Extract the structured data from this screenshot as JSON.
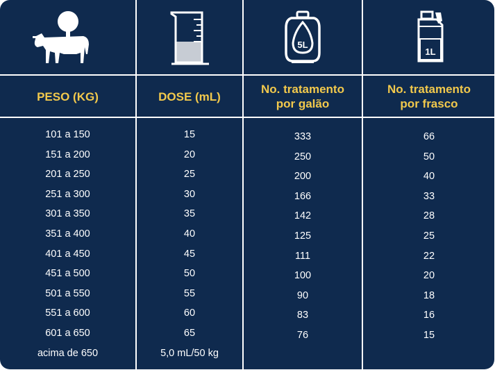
{
  "icons": {
    "col1": "cow-icon",
    "col2": "beaker-icon",
    "col3": "gallon-5l-icon",
    "col4": "bottle-1l-icon"
  },
  "icon_labels": {
    "gallon": "5L",
    "bottle": "1L"
  },
  "headers": {
    "peso": "PESO (KG)",
    "dose": "DOSE (mL)",
    "galao_line1": "No. tratamento",
    "galao_line2": "por galão",
    "frasco_line1": "No. tratamento",
    "frasco_line2": "por frasco"
  },
  "rows": {
    "peso": [
      "101 a 150",
      "151 a 200",
      "201 a 250",
      "251 a 300",
      "301 a 350",
      "351 a 400",
      "401 a 450",
      "451 a 500",
      "501 a 550",
      "551 a 600",
      "601 a 650",
      "acima de 650"
    ],
    "dose": [
      "15",
      "20",
      "25",
      "30",
      "35",
      "40",
      "45",
      "50",
      "55",
      "60",
      "65",
      "5,0 mL/50 kg"
    ],
    "galao": [
      "333",
      "250",
      "200",
      "166",
      "142",
      "125",
      "111",
      "100",
      "90",
      "83",
      "76"
    ],
    "frasco": [
      "66",
      "50",
      "40",
      "33",
      "28",
      "25",
      "22",
      "20",
      "18",
      "16",
      "15"
    ]
  },
  "colors": {
    "background": "#0f2a4e",
    "header_text": "#f2c94c",
    "body_text": "#ffffff",
    "grid": "#ffffff"
  }
}
